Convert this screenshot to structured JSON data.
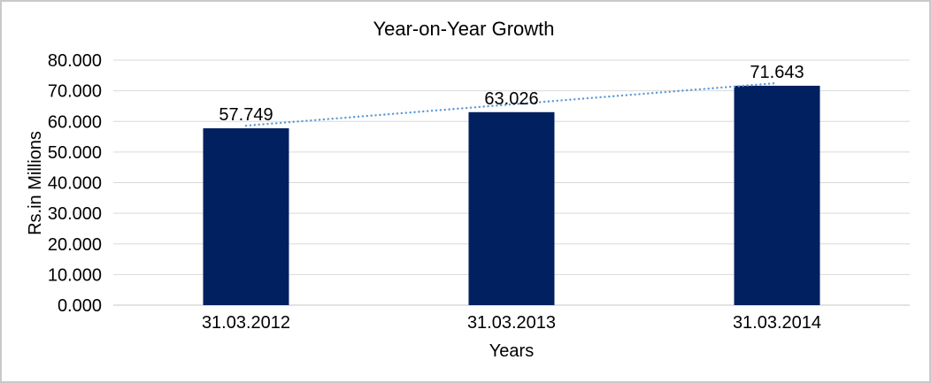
{
  "chart_data": {
    "type": "bar",
    "title": "Year-on-Year Growth",
    "categories": [
      "31.03.2012",
      "31.03.2013",
      "31.03.2014"
    ],
    "values": [
      57.749,
      63.026,
      71.643
    ],
    "data_labels": [
      "57.749",
      "63.026",
      "71.643"
    ],
    "xlabel": "Years",
    "ylabel": "Rs.in Millions",
    "ylim": [
      0,
      80
    ],
    "ytick_step": 10,
    "ytick_labels": [
      "0.000",
      "10.000",
      "20.000",
      "30.000",
      "40.000",
      "50.000",
      "60.000",
      "70.000",
      "80.000"
    ],
    "grid": true,
    "legend": "none",
    "trendline": {
      "type": "linear",
      "style": "dotted",
      "from_value": 57.749,
      "to_value": 71.643
    },
    "colors": {
      "bar": "#002060",
      "trendline": "#5B9BD5",
      "gridline": "#D9D9D9",
      "axis_line": "#D9D9D9",
      "text": "#000000",
      "frame_border": "#C9C9C9",
      "background": "#FFFFFF"
    }
  }
}
